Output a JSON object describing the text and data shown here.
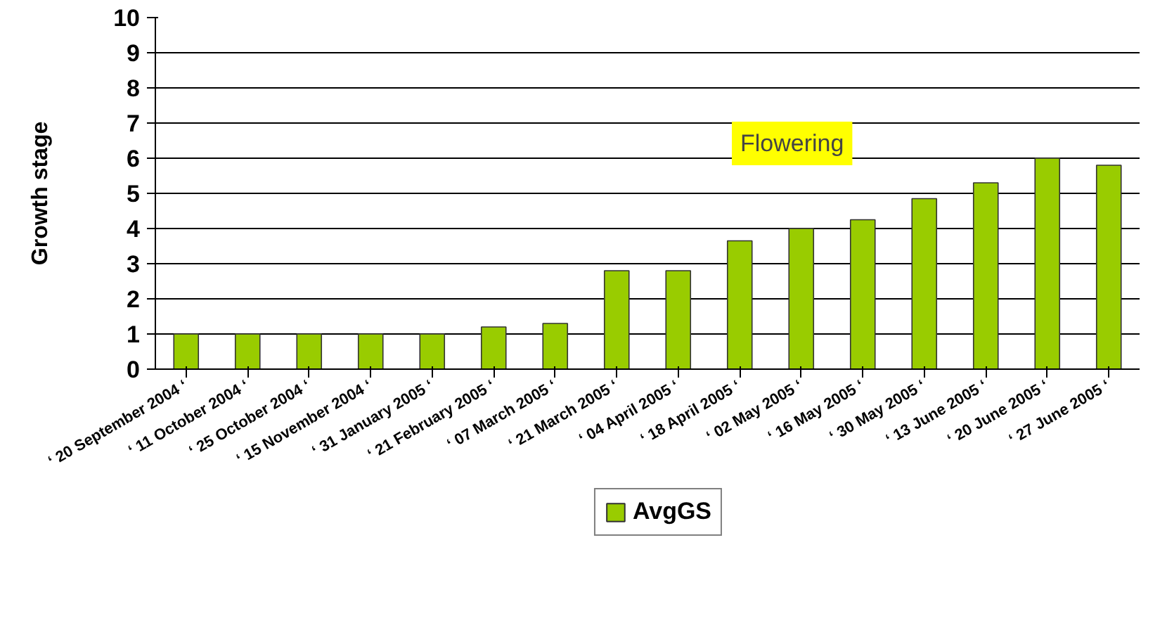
{
  "chart_data": {
    "type": "bar",
    "ylabel": "Growth stage",
    "categories": [
      "‘ 20 September 2004 ‘",
      "‘ 11 October 2004 ‘",
      "‘ 25 October 2004 ‘",
      "‘ 15 November 2004 ‘",
      "‘ 31 January 2005 ‘",
      "‘ 21 February 2005 ‘",
      "‘ 07 March 2005 ‘",
      "‘ 21 March 2005 ‘",
      "‘ 04 April 2005 ‘",
      "‘ 18 April 2005 ‘",
      "‘ 02 May 2005 ‘",
      "‘ 16 May 2005 ‘",
      "‘ 30 May 2005 ‘",
      "‘ 13 June 2005 ‘",
      "‘ 20 June 2005 ‘",
      "‘ 27 June 2005 ‘"
    ],
    "series": [
      {
        "name": "AvgGS",
        "color": "#99cc00",
        "values": [
          1,
          1,
          1,
          1,
          1,
          1.2,
          1.3,
          2.8,
          2.8,
          3.65,
          4.0,
          4.25,
          4.85,
          5.3,
          6.0,
          5.8
        ]
      }
    ],
    "ylim": [
      0,
      10
    ],
    "yticks": [
      0,
      1,
      2,
      3,
      4,
      5,
      6,
      7,
      8,
      9,
      10
    ],
    "grid": "y",
    "legend": "bottom",
    "annotations": [
      "Flowering"
    ]
  }
}
